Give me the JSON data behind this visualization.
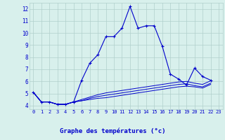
{
  "xlabel": "Graphe des températures (°c)",
  "x_hours": [
    0,
    1,
    2,
    3,
    4,
    5,
    6,
    7,
    8,
    9,
    10,
    11,
    12,
    13,
    14,
    15,
    16,
    17,
    18,
    19,
    20,
    21,
    22,
    23
  ],
  "temp_main": [
    5.1,
    4.3,
    4.3,
    4.1,
    4.1,
    4.3,
    6.1,
    7.5,
    8.2,
    9.7,
    9.7,
    10.4,
    12.2,
    10.4,
    10.6,
    10.6,
    8.9,
    6.6,
    6.2,
    5.7,
    7.1,
    6.4,
    6.1,
    null
  ],
  "temp_line2": [
    5.1,
    4.3,
    4.3,
    4.1,
    4.1,
    4.3,
    4.5,
    4.7,
    4.9,
    5.05,
    5.15,
    5.25,
    5.35,
    5.45,
    5.55,
    5.65,
    5.75,
    5.85,
    5.95,
    6.0,
    5.85,
    5.75,
    6.05,
    null
  ],
  "temp_line3": [
    5.1,
    4.3,
    4.3,
    4.1,
    4.1,
    4.3,
    4.4,
    4.6,
    4.75,
    4.85,
    4.95,
    5.05,
    5.15,
    5.25,
    5.35,
    5.45,
    5.55,
    5.65,
    5.75,
    5.8,
    5.65,
    5.55,
    5.85,
    null
  ],
  "temp_line4": [
    5.1,
    4.3,
    4.3,
    4.1,
    4.1,
    4.3,
    4.4,
    4.5,
    4.6,
    4.65,
    4.75,
    4.85,
    4.95,
    5.05,
    5.15,
    5.25,
    5.35,
    5.45,
    5.55,
    5.6,
    5.55,
    5.45,
    5.75,
    null
  ],
  "ylim": [
    3.7,
    12.5
  ],
  "yticks": [
    4,
    5,
    6,
    7,
    8,
    9,
    10,
    11,
    12
  ],
  "xticks": [
    0,
    1,
    2,
    3,
    4,
    5,
    6,
    7,
    8,
    9,
    10,
    11,
    12,
    13,
    14,
    15,
    16,
    17,
    18,
    19,
    20,
    21,
    22,
    23
  ],
  "line_color": "#0000cc",
  "bg_color": "#d8f0ec",
  "grid_color": "#b0d0cc"
}
